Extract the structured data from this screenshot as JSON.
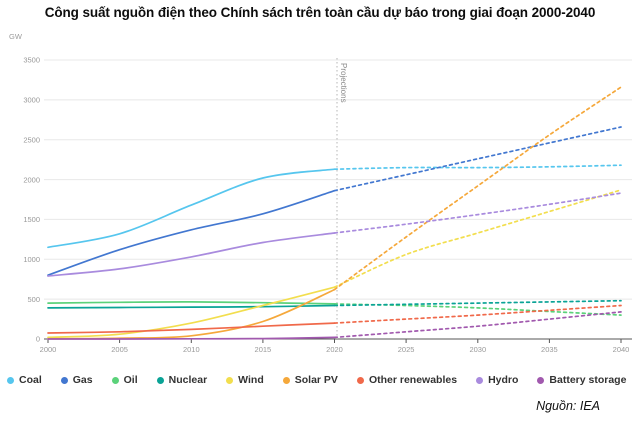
{
  "header": {
    "title": "Công suất nguồn điện theo Chính sách trên toàn cầu dự báo trong giai đoạn 2000-2040"
  },
  "footer": {
    "source": "Nguồn: IEA"
  },
  "chart_data": {
    "type": "line",
    "y_unit": "GW",
    "xlabel": "",
    "ylabel": "GW",
    "xlim": [
      2000,
      2040
    ],
    "ylim": [
      0,
      3500
    ],
    "xticks": [
      2000,
      2005,
      2010,
      2015,
      2020,
      2025,
      2030,
      2035,
      2040
    ],
    "yticks": [
      0,
      500,
      1000,
      1500,
      2000,
      2500,
      3000,
      3500
    ],
    "grid": true,
    "legend_position": "bottom",
    "projection_start": 2020,
    "projection_label": "Projections",
    "categories": [
      2000,
      2005,
      2010,
      2015,
      2020,
      2025,
      2030,
      2035,
      2040
    ],
    "series": [
      {
        "name": "Coal",
        "color": "#56C6EE",
        "values": [
          1150,
          1320,
          1680,
          2020,
          2130,
          2150,
          2150,
          2160,
          2180
        ]
      },
      {
        "name": "Gas",
        "color": "#4277D0",
        "values": [
          800,
          1120,
          1370,
          1570,
          1860,
          2060,
          2260,
          2460,
          2660
        ]
      },
      {
        "name": "Oil",
        "color": "#5BD27A",
        "values": [
          450,
          460,
          465,
          455,
          440,
          420,
          390,
          345,
          300
        ]
      },
      {
        "name": "Nuclear",
        "color": "#0AA396",
        "values": [
          390,
          395,
          400,
          405,
          420,
          435,
          450,
          465,
          480
        ]
      },
      {
        "name": "Wind",
        "color": "#F2DE4E",
        "values": [
          20,
          60,
          200,
          420,
          650,
          1060,
          1330,
          1600,
          1870
        ]
      },
      {
        "name": "Solar PV",
        "color": "#F5A83B",
        "values": [
          2,
          10,
          40,
          220,
          620,
          1280,
          1920,
          2560,
          3160
        ]
      },
      {
        "name": "Other renewables",
        "color": "#F0694A",
        "values": [
          75,
          90,
          120,
          160,
          200,
          250,
          300,
          360,
          420
        ]
      },
      {
        "name": "Hydro",
        "color": "#A98BDE",
        "values": [
          790,
          880,
          1030,
          1210,
          1330,
          1440,
          1560,
          1690,
          1830
        ]
      },
      {
        "name": "Battery storage",
        "color": "#A159AE",
        "values": [
          0,
          0,
          2,
          5,
          20,
          90,
          160,
          250,
          340
        ]
      }
    ],
    "annotations": [
      {
        "text": "Coal",
        "year": 15.7,
        "gw": 2200,
        "anchor": "middle"
      },
      {
        "text": "Gas",
        "year": 25.6,
        "gw": 2160,
        "anchor": "middle"
      },
      {
        "text": "Solar PV",
        "year": 39.2,
        "gw": 3180,
        "anchor": "middle"
      },
      {
        "text": "Hydro",
        "year": 0.8,
        "gw": 720,
        "anchor": "start"
      },
      {
        "text": "Other renewables",
        "year": 2.7,
        "gw": 130,
        "anchor": "start"
      },
      {
        "text": "Nuclear",
        "year": 21.3,
        "gw": 495,
        "anchor": "start"
      },
      {
        "text": "Wind",
        "year": 27.4,
        "gw": 1020,
        "anchor": "start"
      },
      {
        "text": "Battery storage",
        "year": 36.3,
        "gw": 115,
        "anchor": "start"
      },
      {
        "text": "Oil",
        "year": 40.7,
        "gw": 115,
        "anchor": "end"
      }
    ]
  }
}
